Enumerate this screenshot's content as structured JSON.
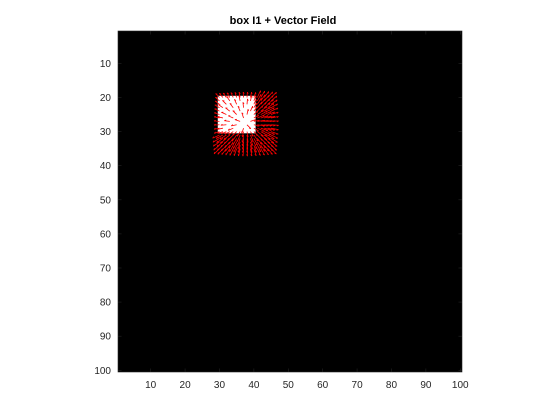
{
  "chart_data": {
    "type": "image-with-vector-field",
    "title": "box I1 + Vector Field",
    "xlabel": "",
    "ylabel": "",
    "xlim": [
      0.5,
      100.5
    ],
    "ylim": [
      0.5,
      100.5
    ],
    "y_reversed": true,
    "x_ticks": [
      10,
      20,
      30,
      40,
      50,
      60,
      70,
      80,
      90,
      100
    ],
    "y_ticks": [
      10,
      20,
      30,
      40,
      50,
      60,
      70,
      80,
      90,
      100
    ],
    "image_background": "black",
    "image_box": {
      "x_range": [
        30,
        40
      ],
      "y_range": [
        20,
        30
      ],
      "value": "white"
    },
    "vector_field_box": {
      "x_range": [
        30,
        45
      ],
      "y_range": [
        20,
        35
      ]
    },
    "grid": false,
    "legend": "none"
  },
  "colors": {
    "background": "#000000",
    "box": "#ffffff",
    "vectors": "#ff0000",
    "axis": "#262626"
  }
}
